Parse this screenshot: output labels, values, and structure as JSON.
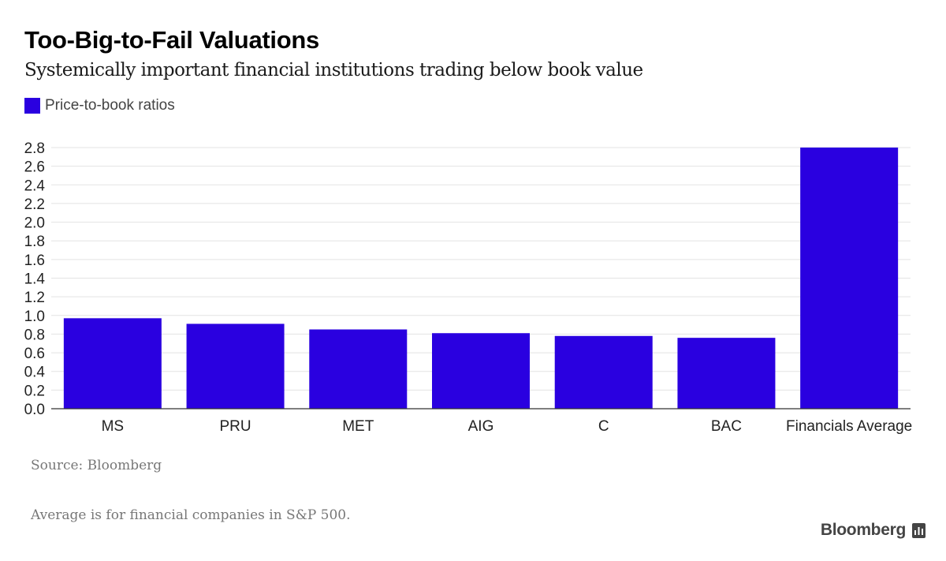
{
  "title": "Too-Big-to-Fail Valuations",
  "subtitle": "Systemically important financial institutions trading below book value",
  "legend": {
    "label": "Price-to-book ratios",
    "color": "#2a00e0"
  },
  "source": "Source: Bloomberg",
  "note": "Average is for financial companies in S&P 500.",
  "brand": {
    "name": "Bloomberg",
    "icon": "bloomberg-logo-icon"
  },
  "chart_data": {
    "type": "bar",
    "categories": [
      "MS",
      "PRU",
      "MET",
      "AIG",
      "C",
      "BAC",
      "Financials Average"
    ],
    "series": [
      {
        "name": "Price-to-book ratios",
        "values": [
          0.97,
          0.91,
          0.85,
          0.81,
          0.78,
          0.76,
          2.8
        ]
      }
    ],
    "ylim": [
      0,
      2.8
    ],
    "yticks": [
      "0.0",
      "0.2",
      "0.4",
      "0.6",
      "0.8",
      "1.0",
      "1.2",
      "1.4",
      "1.6",
      "1.8",
      "2.0",
      "2.2",
      "2.4",
      "2.6",
      "2.8"
    ],
    "grid": true,
    "legend_position": "top-left",
    "bar_color": "#2a00e0"
  }
}
